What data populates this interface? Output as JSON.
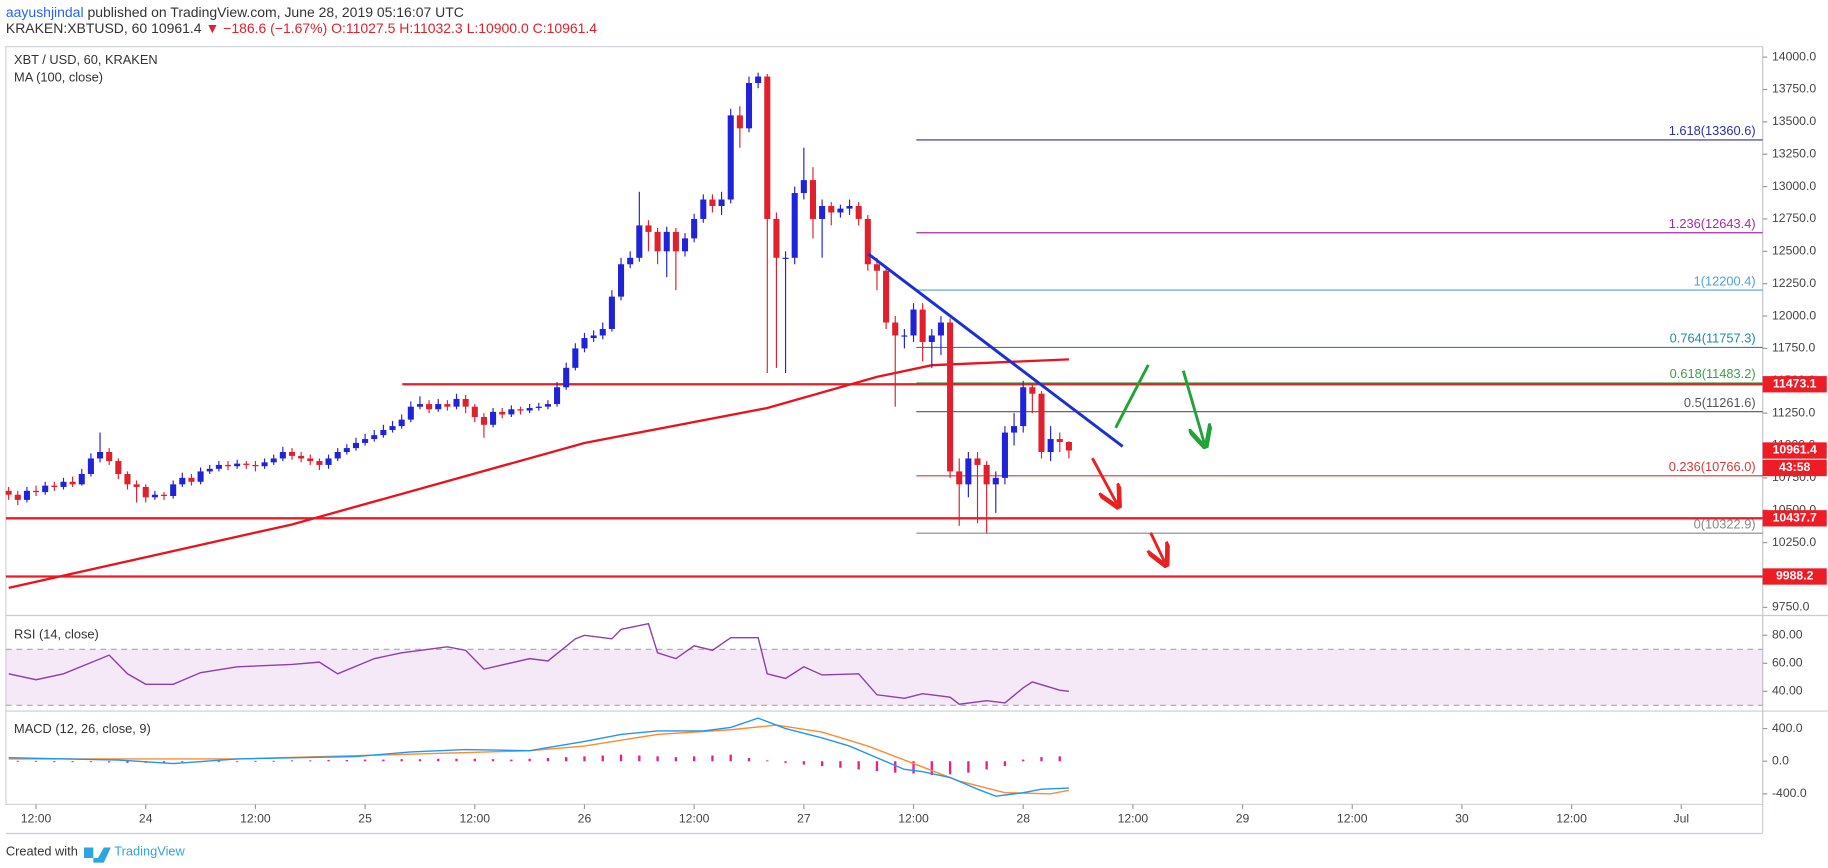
{
  "header": {
    "author": "aayushjindal",
    "published": "published on TradingView.com, June 28, 2019 05:16:07 UTC",
    "symbol": "KRAKEN:XBTUSD, 60",
    "last": "10961.4",
    "change": "▼ −186.6 (−1.67%)",
    "ohlc": [
      "O:11027.5",
      "H:11032.3",
      "L:10900.0",
      "C:10961.4"
    ]
  },
  "footer": {
    "created": "Created with",
    "brand": "TradingView"
  },
  "chart_data": {
    "type": "candlestick",
    "title": "XBT / USD, 60, KRAKEN",
    "up_color": "#2023d6",
    "down_color": "#e0202c",
    "x": [
      9,
      10,
      11,
      12,
      13,
      14,
      15,
      16,
      17,
      18,
      19,
      20,
      21,
      22,
      23,
      24,
      25,
      26,
      27,
      28,
      29,
      30,
      31,
      32,
      33,
      34,
      35,
      36,
      37,
      38,
      39,
      40,
      41,
      42,
      43,
      44,
      45,
      46,
      47,
      48,
      49,
      50,
      51,
      52,
      53,
      54,
      55,
      56,
      57,
      58,
      59,
      60,
      61,
      62,
      63,
      64,
      65,
      66,
      67,
      68,
      69,
      70,
      71,
      72,
      73,
      74,
      75,
      76,
      77,
      78,
      79,
      80,
      81,
      82,
      83,
      84,
      85,
      86,
      87,
      88,
      89,
      90,
      91,
      92,
      93,
      94,
      95,
      96,
      97,
      98,
      99,
      100,
      101,
      102,
      103,
      104,
      105,
      106,
      107,
      108,
      109,
      110,
      111,
      112,
      113,
      114,
      115,
      116,
      117,
      118,
      119,
      120,
      121,
      122,
      123,
      124,
      125
    ],
    "open": [
      10650,
      10620,
      10580,
      10650,
      10640,
      10690,
      10680,
      10720,
      10700,
      10780,
      10900,
      10950,
      10880,
      10780,
      10700,
      10680,
      10600,
      10620,
      10610,
      10700,
      10750,
      10720,
      10800,
      10820,
      10850,
      10840,
      10860,
      10850,
      10840,
      10870,
      10900,
      10950,
      10920,
      10900,
      10880,
      10850,
      10900,
      10950,
      10980,
      11020,
      11050,
      11080,
      11120,
      11150,
      11200,
      11300,
      11320,
      11280,
      11320,
      11300,
      11360,
      11300,
      11220,
      11160,
      11260,
      11240,
      11280,
      11270,
      11290,
      11300,
      11320,
      11450,
      11600,
      11750,
      11830,
      11850,
      11900,
      12150,
      12400,
      12450,
      12700,
      12650,
      12500,
      12650,
      12500,
      12600,
      12750,
      12900,
      12850,
      12900,
      13550,
      13450,
      13800,
      13850,
      12750,
      12450,
      12450,
      12950,
      13050,
      12750,
      12850,
      12800,
      12830,
      12850,
      12750,
      12400,
      12350,
      11950,
      11850,
      11850,
      12050,
      11800,
      11850,
      11950,
      10800,
      10700,
      10900,
      10850,
      10700,
      10750,
      11100,
      11150,
      11450,
      11400,
      10950,
      11050,
      11027.5
    ],
    "high": [
      10680,
      10650,
      10680,
      10690,
      10720,
      10720,
      10750,
      10760,
      10820,
      10940,
      11100,
      10980,
      10900,
      10800,
      10730,
      10700,
      10650,
      10640,
      10730,
      10790,
      10780,
      10830,
      10850,
      10880,
      10880,
      10890,
      10880,
      10880,
      10900,
      10930,
      10990,
      10980,
      10950,
      10930,
      10900,
      10930,
      10980,
      11010,
      11060,
      11090,
      11120,
      11160,
      11190,
      11240,
      11340,
      11380,
      11350,
      11360,
      11350,
      11400,
      11390,
      11320,
      11250,
      11290,
      11290,
      11310,
      11300,
      11320,
      11330,
      11350,
      11490,
      11640,
      11790,
      11870,
      11890,
      11950,
      12200,
      12450,
      12500,
      12960,
      12740,
      12680,
      12690,
      12680,
      12640,
      12790,
      12940,
      12940,
      12960,
      13600,
      13620,
      13850,
      13880,
      13870,
      12800,
      12500,
      13000,
      13300,
      13150,
      12900,
      12880,
      12860,
      12900,
      12880,
      12780,
      12450,
      12380,
      12000,
      11900,
      12100,
      12100,
      11900,
      12000,
      11980,
      10900,
      10950,
      10950,
      10880,
      10800,
      11150,
      11250,
      11500,
      11480,
      11420,
      11150,
      11100,
      11032.3
    ],
    "low": [
      10580,
      10540,
      10560,
      10610,
      10620,
      10650,
      10660,
      10680,
      10690,
      10760,
      10870,
      10850,
      10740,
      10660,
      10560,
      10560,
      10580,
      10580,
      10590,
      10680,
      10690,
      10700,
      10780,
      10800,
      10810,
      10820,
      10820,
      10800,
      10820,
      10850,
      10880,
      10890,
      10870,
      10850,
      10810,
      10820,
      10880,
      10930,
      10960,
      11000,
      11030,
      11060,
      11100,
      11130,
      11180,
      11280,
      11250,
      11260,
      11270,
      11280,
      11250,
      11180,
      11060,
      11140,
      11210,
      11220,
      11240,
      11250,
      11270,
      11280,
      11300,
      11430,
      11580,
      11720,
      11800,
      11820,
      11880,
      12120,
      12370,
      12420,
      12500,
      12400,
      12300,
      12200,
      12460,
      12570,
      12720,
      12800,
      12780,
      12870,
      13300,
      13420,
      13760,
      11560,
      11600,
      11560,
      12400,
      12900,
      12600,
      12450,
      12700,
      12760,
      12780,
      12700,
      12350,
      12200,
      11900,
      11300,
      11750,
      11800,
      11650,
      11600,
      11700,
      10750,
      10380,
      10600,
      10400,
      10322.9,
      10480,
      10700,
      11000,
      11100,
      11250,
      10900,
      10880,
      10950,
      10900
    ],
    "close": [
      10620,
      10580,
      10650,
      10640,
      10690,
      10680,
      10720,
      10700,
      10780,
      10900,
      10950,
      10880,
      10780,
      10700,
      10680,
      10600,
      10620,
      10610,
      10700,
      10750,
      10720,
      10800,
      10820,
      10850,
      10840,
      10860,
      10850,
      10840,
      10870,
      10900,
      10950,
      10920,
      10900,
      10880,
      10850,
      10900,
      10950,
      10980,
      11020,
      11050,
      11080,
      11120,
      11150,
      11200,
      11300,
      11320,
      11280,
      11320,
      11300,
      11360,
      11300,
      11220,
      11160,
      11260,
      11240,
      11280,
      11270,
      11290,
      11300,
      11320,
      11450,
      11600,
      11750,
      11830,
      11850,
      11900,
      12150,
      12400,
      12450,
      12700,
      12650,
      12500,
      12650,
      12500,
      12600,
      12750,
      12900,
      12850,
      12900,
      13550,
      13450,
      13800,
      13850,
      12750,
      12450,
      12450,
      12950,
      13050,
      12750,
      12850,
      12800,
      12830,
      12850,
      12750,
      12400,
      12350,
      11950,
      11850,
      11850,
      12050,
      11800,
      11850,
      11950,
      10800,
      10700,
      10900,
      10850,
      10700,
      10750,
      11100,
      11150,
      11450,
      11400,
      10950,
      11050,
      11027.5,
      10961.4
    ],
    "xlim": [
      8.7,
      200.9
    ],
    "xticks": [
      {
        "value": 12,
        "label": "12:00"
      },
      {
        "value": 24,
        "label": "24"
      },
      {
        "value": 36,
        "label": "12:00"
      },
      {
        "value": 48,
        "label": "25"
      },
      {
        "value": 60,
        "label": "12:00"
      },
      {
        "value": 72,
        "label": "26"
      },
      {
        "value": 84,
        "label": "12:00"
      },
      {
        "value": 96,
        "label": "27"
      },
      {
        "value": 108,
        "label": "12:00"
      },
      {
        "value": 120,
        "label": "28"
      },
      {
        "value": 132,
        "label": "12:00"
      },
      {
        "value": 144,
        "label": "29"
      },
      {
        "value": 156,
        "label": "12:00"
      },
      {
        "value": 168,
        "label": "30"
      },
      {
        "value": 180,
        "label": "12:00"
      },
      {
        "value": 192,
        "label": "Jul"
      }
    ],
    "ylim": [
      9696,
      14081
    ],
    "yticks": [
      {
        "value": 14000,
        "label": "14000.0"
      },
      {
        "value": 13750,
        "label": "13750.0"
      },
      {
        "value": 13500,
        "label": "13500.0"
      },
      {
        "value": 13250,
        "label": "13250.0"
      },
      {
        "value": 13000,
        "label": "13000.0"
      },
      {
        "value": 12750,
        "label": "12750.0"
      },
      {
        "value": 12500,
        "label": "12500.0"
      },
      {
        "value": 12250,
        "label": "12250.0"
      },
      {
        "value": 12000,
        "label": "12000.0"
      },
      {
        "value": 11750,
        "label": "11750.0"
      },
      {
        "value": 11500,
        "label": "11500.0"
      },
      {
        "value": 11250,
        "label": "11250.0"
      },
      {
        "value": 11000,
        "label": "11000.0"
      },
      {
        "value": 10750,
        "label": "10750.0"
      },
      {
        "value": 10500,
        "label": "10500.0"
      },
      {
        "value": 10250,
        "label": "10250.0"
      },
      {
        "value": 10000,
        "label": "10000.0"
      },
      {
        "value": 9750,
        "label": "9750.0"
      }
    ],
    "ma": {
      "name": "MA (100, close)",
      "color": "#e8131c",
      "x": [
        9,
        40,
        72,
        92,
        104,
        110,
        125
      ],
      "values": [
        9900,
        10390,
        11020,
        11290,
        11530,
        11620,
        11665
      ]
    },
    "levels": [
      {
        "value": 11473.1,
        "label": "11473.1"
      },
      {
        "value": 10437.7,
        "label": "10437.7"
      },
      {
        "value": 9988.2,
        "label": "9988.2"
      }
    ],
    "level_color": "#ee1c25",
    "last_price": {
      "value": 10961.4,
      "label": "10961.4"
    },
    "countdown": "43:58",
    "fib": [
      {
        "value": 13360.6,
        "label": "1.618(13360.6)",
        "color": "#2a2fa8"
      },
      {
        "value": 12643.4,
        "label": "1.236(12643.4)",
        "color": "#a52ba8"
      },
      {
        "value": 12200.4,
        "label": "1(12200.4)",
        "color": "#4ca3d9"
      },
      {
        "value": 11757.3,
        "label": "0.764(11757.3)",
        "color": "#1e8c9e"
      },
      {
        "value": 11483.2,
        "label": "0.618(11483.2)",
        "color": "#3aa04a"
      },
      {
        "value": 11261.6,
        "label": "0.5(11261.6)",
        "color": "#555555"
      },
      {
        "value": 10766.0,
        "label": "0.236(10766.0)",
        "color": "#d33a3a"
      },
      {
        "value": 10322.9,
        "label": "0(10322.9)",
        "color": "#888888"
      }
    ],
    "rsi": {
      "title": "RSI (14, close)",
      "color": "#8b3fb0",
      "band": [
        30,
        70
      ],
      "ylim": [
        26.7,
        93.3
      ],
      "yticks": [
        {
          "value": 80,
          "label": "80.00"
        },
        {
          "value": 60,
          "label": "60.00"
        },
        {
          "value": 40,
          "label": "40.00"
        }
      ],
      "x": [
        9,
        12,
        15,
        20,
        22,
        24,
        27,
        30,
        34,
        40,
        43,
        45,
        49,
        52,
        57,
        59,
        61,
        66,
        68,
        71,
        72,
        75,
        76,
        79,
        80,
        82,
        84,
        86,
        88,
        91,
        92,
        94,
        96,
        98,
        102,
        104,
        107,
        109,
        112,
        113,
        116,
        118,
        120,
        121,
        124,
        125
      ],
      "values": [
        52.5,
        48.3,
        52.5,
        65.8,
        52.5,
        45,
        45,
        53.3,
        57.5,
        59.2,
        60.8,
        52.5,
        63.3,
        67.5,
        71.7,
        69.2,
        55.8,
        63.3,
        61.7,
        77.5,
        80,
        77.5,
        84.2,
        88.3,
        67.5,
        63.3,
        72.5,
        69.2,
        78.3,
        78.3,
        52.5,
        49.2,
        57.5,
        51.7,
        52.5,
        37.5,
        35,
        38.3,
        35.8,
        30.8,
        33.3,
        31.7,
        42.5,
        46.7,
        40.8,
        40
      ]
    },
    "macd": {
      "title": "MACD (12, 26, close, 9)",
      "ylim": [
        -528.6,
        600
      ],
      "yticks": [
        {
          "value": 400,
          "label": "400.0"
        },
        {
          "value": 0,
          "label": "0.0"
        },
        {
          "value": -400,
          "label": "-400.0"
        }
      ],
      "macd": {
        "color": "#2196f3",
        "x": [
          9,
          21,
          27,
          34,
          47,
          53,
          59,
          66,
          69,
          72,
          76,
          80,
          85,
          88,
          91,
          94,
          98,
          101,
          104,
          107,
          109,
          112,
          115,
          117,
          120,
          122,
          125
        ],
        "values": [
          43,
          14,
          -29,
          29,
          57,
          114,
          143,
          129,
          186,
          243,
          329,
          371,
          371,
          414,
          529,
          400,
          286,
          186,
          43,
          -100,
          -129,
          -200,
          -343,
          -429,
          -386,
          -343,
          -329
        ]
      },
      "signal": {
        "color": "#ff8a30",
        "x": [
          9,
          34,
          53,
          66,
          72,
          80,
          88,
          93,
          98,
          103,
          108,
          113,
          118,
          123,
          125
        ],
        "values": [
          29,
          29,
          86,
          129,
          186,
          329,
          386,
          443,
          357,
          186,
          -29,
          -243,
          -386,
          -400,
          -357
        ]
      },
      "histogram": {
        "color": "#e91e8c",
        "x": [
          10,
          12,
          14,
          16,
          18,
          20,
          22,
          24,
          26,
          28,
          30,
          32,
          34,
          36,
          38,
          40,
          42,
          44,
          46,
          48,
          50,
          52,
          54,
          56,
          58,
          60,
          62,
          64,
          66,
          68,
          70,
          72,
          74,
          76,
          78,
          80,
          82,
          84,
          86,
          88,
          90,
          92,
          94,
          96,
          98,
          100,
          102,
          104,
          106,
          108,
          110,
          112,
          114,
          116,
          118,
          120,
          122,
          124
        ],
        "values": [
          5,
          5,
          0,
          -5,
          -10,
          -15,
          -20,
          -20,
          -15,
          -10,
          -10,
          -5,
          0,
          5,
          5,
          10,
          10,
          15,
          15,
          20,
          20,
          25,
          25,
          30,
          30,
          30,
          25,
          20,
          30,
          40,
          50,
          60,
          70,
          80,
          70,
          60,
          50,
          60,
          70,
          80,
          40,
          10,
          -20,
          -40,
          -60,
          -80,
          -100,
          -120,
          -140,
          -150,
          -170,
          -160,
          -140,
          -100,
          -60,
          20,
          50,
          60
        ]
      }
    }
  }
}
